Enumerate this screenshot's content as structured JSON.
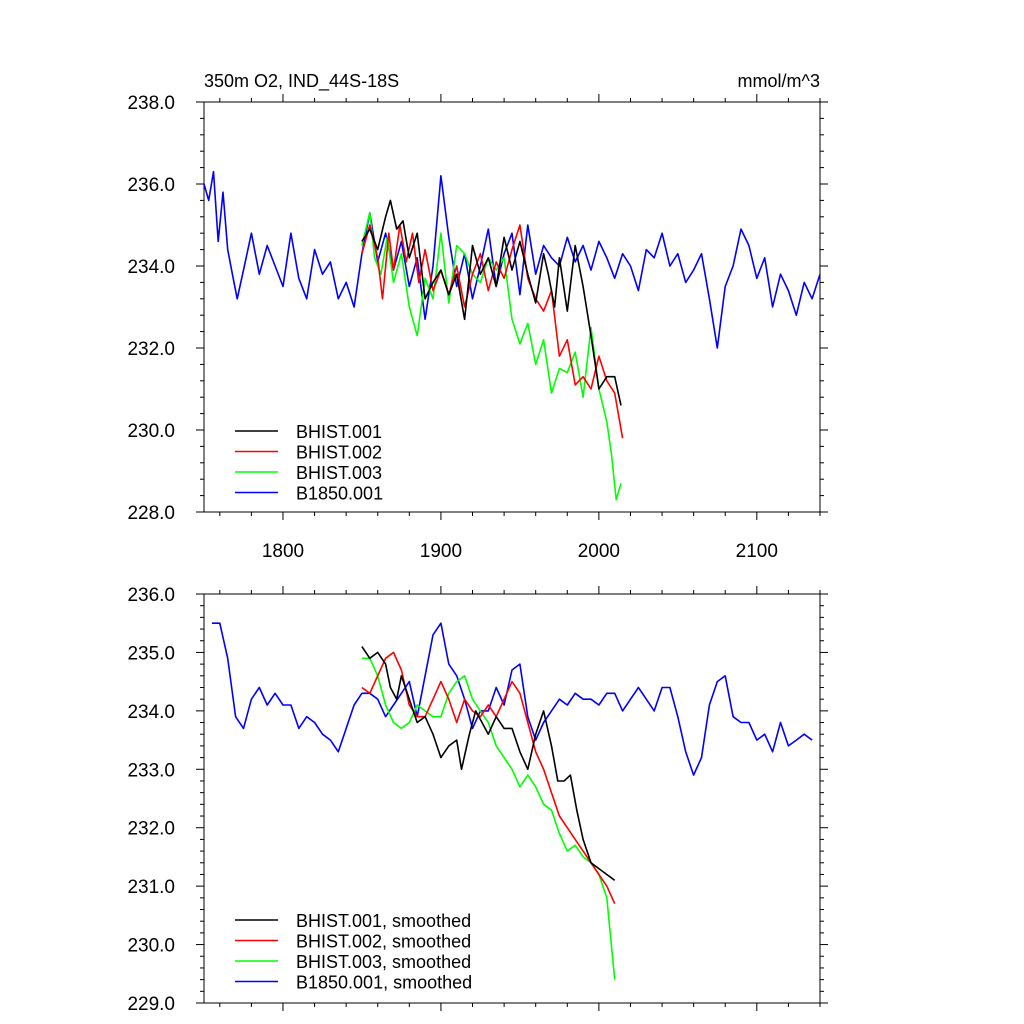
{
  "title_left": "350m O2, IND_44S-18S",
  "title_right": "mmol/m^3",
  "chart_data": [
    {
      "type": "line",
      "xlim": [
        1750,
        2140
      ],
      "ylim": [
        228,
        238
      ],
      "x_ticks": [
        1800,
        1900,
        2000,
        2100
      ],
      "x_tick_labels": [
        "1800",
        "1900",
        "2000",
        "2100"
      ],
      "y_ticks": [
        228,
        230,
        232,
        234,
        236,
        238
      ],
      "y_tick_labels": [
        "228.0",
        "230.0",
        "232.0",
        "234.0",
        "236.0",
        "238.0"
      ],
      "legend_position": "bottom-left",
      "series": [
        {
          "name": "BHIST.001",
          "color": "#000000",
          "x": [
            1850,
            1855,
            1860,
            1865,
            1868,
            1872,
            1876,
            1880,
            1885,
            1890,
            1895,
            1900,
            1905,
            1910,
            1915,
            1920,
            1925,
            1930,
            1935,
            1940,
            1945,
            1950,
            1955,
            1960,
            1965,
            1968,
            1972,
            1975,
            1980,
            1985,
            1990,
            1995,
            2000,
            2005,
            2010,
            2014
          ],
          "y": [
            234.6,
            234.9,
            234.4,
            235.2,
            235.6,
            234.9,
            235.1,
            234.2,
            234.8,
            233.2,
            233.6,
            233.9,
            233.3,
            233.8,
            232.7,
            234.5,
            233.8,
            234.2,
            233.5,
            234.7,
            233.9,
            234.6,
            233.8,
            233.1,
            234.3,
            233.8,
            233.0,
            234.2,
            232.9,
            234.5,
            233.5,
            232.3,
            231.0,
            231.3,
            231.3,
            230.6
          ]
        },
        {
          "name": "BHIST.002",
          "color": "#ff0000",
          "x": [
            1850,
            1855,
            1860,
            1863,
            1867,
            1870,
            1874,
            1878,
            1882,
            1886,
            1890,
            1895,
            1900,
            1905,
            1910,
            1915,
            1920,
            1925,
            1930,
            1935,
            1940,
            1945,
            1950,
            1955,
            1960,
            1965,
            1970,
            1975,
            1980,
            1985,
            1990,
            1995,
            2000,
            2005,
            2010,
            2015
          ],
          "y": [
            234.3,
            235.0,
            234.2,
            233.2,
            234.8,
            233.9,
            235.0,
            234.1,
            234.8,
            233.6,
            234.4,
            233.4,
            233.9,
            233.3,
            234.0,
            233.0,
            233.8,
            234.3,
            233.4,
            234.1,
            233.7,
            234.4,
            235.0,
            233.7,
            233.2,
            232.9,
            233.4,
            231.8,
            232.2,
            231.1,
            231.3,
            231.0,
            231.8,
            231.2,
            230.9,
            229.8
          ]
        },
        {
          "name": "BHIST.003",
          "color": "#00ff00",
          "x": [
            1850,
            1855,
            1858,
            1862,
            1866,
            1870,
            1875,
            1880,
            1885,
            1890,
            1895,
            1900,
            1905,
            1910,
            1915,
            1920,
            1925,
            1930,
            1935,
            1940,
            1945,
            1950,
            1955,
            1960,
            1965,
            1970,
            1975,
            1980,
            1985,
            1990,
            1995,
            2000,
            2005,
            2008,
            2011,
            2014
          ],
          "y": [
            234.5,
            235.3,
            234.2,
            233.8,
            234.7,
            233.6,
            234.3,
            233.0,
            232.3,
            233.7,
            233.2,
            234.8,
            233.1,
            234.5,
            234.3,
            233.8,
            233.6,
            234.2,
            233.9,
            234.2,
            232.7,
            232.1,
            232.6,
            231.6,
            232.2,
            230.9,
            231.5,
            231.4,
            231.9,
            230.8,
            232.5,
            231.0,
            230.2,
            229.4,
            228.3,
            228.7
          ]
        },
        {
          "name": "B1850.001",
          "color": "#0000ff",
          "x": [
            1750,
            1753,
            1756,
            1759,
            1762,
            1765,
            1768,
            1771,
            1775,
            1780,
            1785,
            1790,
            1795,
            1800,
            1805,
            1810,
            1815,
            1820,
            1825,
            1830,
            1835,
            1840,
            1845,
            1850,
            1855,
            1860,
            1865,
            1870,
            1875,
            1880,
            1885,
            1890,
            1895,
            1900,
            1905,
            1910,
            1915,
            1920,
            1925,
            1930,
            1935,
            1940,
            1945,
            1950,
            1955,
            1960,
            1965,
            1970,
            1975,
            1980,
            1985,
            1990,
            1995,
            2000,
            2005,
            2010,
            2015,
            2020,
            2025,
            2030,
            2035,
            2040,
            2045,
            2050,
            2055,
            2060,
            2065,
            2070,
            2075,
            2080,
            2085,
            2090,
            2095,
            2100,
            2105,
            2110,
            2115,
            2120,
            2125,
            2130,
            2135,
            2140
          ],
          "y": [
            236.0,
            235.6,
            236.3,
            234.6,
            235.8,
            234.4,
            233.8,
            233.2,
            233.9,
            234.8,
            233.8,
            234.5,
            234.0,
            233.5,
            234.8,
            233.7,
            233.2,
            234.4,
            233.8,
            234.1,
            233.2,
            233.6,
            233.0,
            234.3,
            235.3,
            234.1,
            234.8,
            233.9,
            234.6,
            233.5,
            234.2,
            232.7,
            234.0,
            236.2,
            234.7,
            233.5,
            234.3,
            233.2,
            234.0,
            234.9,
            233.5,
            234.3,
            234.8,
            233.3,
            235.0,
            233.8,
            234.5,
            234.2,
            234.0,
            234.7,
            234.1,
            234.5,
            233.9,
            234.6,
            234.2,
            233.7,
            234.3,
            234.0,
            233.4,
            234.4,
            234.2,
            234.8,
            234.0,
            234.3,
            233.6,
            233.9,
            234.3,
            233.2,
            232.0,
            233.5,
            234.0,
            234.9,
            234.5,
            233.7,
            234.2,
            233.0,
            233.8,
            233.4,
            232.8,
            233.6,
            233.2,
            233.8
          ]
        }
      ]
    },
    {
      "type": "line",
      "xlim": [
        1750,
        2140
      ],
      "ylim": [
        229,
        236
      ],
      "x_ticks": [
        1800,
        1900,
        2000,
        2100
      ],
      "y_ticks": [
        229,
        230,
        231,
        232,
        233,
        234,
        235,
        236
      ],
      "y_tick_labels": [
        "229.0",
        "230.0",
        "231.0",
        "232.0",
        "233.0",
        "234.0",
        "235.0",
        "236.0"
      ],
      "legend_position": "bottom-left",
      "series": [
        {
          "name": "BHIST.001, smoothed",
          "color": "#000000",
          "x": [
            1850,
            1855,
            1860,
            1865,
            1868,
            1872,
            1875,
            1880,
            1885,
            1890,
            1895,
            1900,
            1905,
            1910,
            1913,
            1918,
            1922,
            1926,
            1930,
            1935,
            1940,
            1945,
            1950,
            1955,
            1960,
            1965,
            1970,
            1974,
            1978,
            1982,
            1986,
            1990,
            1995,
            2000,
            2005,
            2010
          ],
          "y": [
            235.1,
            234.9,
            235.0,
            234.8,
            234.4,
            234.2,
            234.6,
            234.2,
            233.8,
            233.9,
            233.6,
            233.2,
            233.4,
            233.5,
            233.0,
            233.6,
            234.0,
            233.8,
            233.6,
            233.9,
            233.7,
            233.7,
            233.3,
            233.0,
            233.6,
            234.0,
            233.4,
            232.8,
            232.8,
            232.9,
            232.3,
            231.8,
            231.4,
            231.3,
            231.2,
            231.1
          ]
        },
        {
          "name": "BHIST.002, smoothed",
          "color": "#ff0000",
          "x": [
            1850,
            1855,
            1860,
            1865,
            1870,
            1875,
            1880,
            1885,
            1890,
            1895,
            1900,
            1905,
            1910,
            1915,
            1920,
            1925,
            1930,
            1935,
            1940,
            1945,
            1950,
            1955,
            1960,
            1965,
            1970,
            1975,
            1980,
            1985,
            1990,
            1995,
            2000,
            2005,
            2010
          ],
          "y": [
            234.4,
            234.3,
            234.6,
            234.9,
            235.0,
            234.7,
            234.1,
            233.9,
            233.9,
            234.2,
            234.5,
            234.2,
            233.8,
            234.2,
            234.0,
            233.9,
            234.1,
            233.9,
            234.2,
            234.5,
            234.3,
            233.8,
            233.3,
            233.0,
            232.6,
            232.2,
            232.0,
            231.8,
            231.6,
            231.4,
            231.2,
            231.0,
            230.7
          ]
        },
        {
          "name": "BHIST.003, smoothed",
          "color": "#00ff00",
          "x": [
            1850,
            1855,
            1860,
            1865,
            1870,
            1875,
            1880,
            1885,
            1890,
            1895,
            1900,
            1905,
            1910,
            1915,
            1920,
            1925,
            1930,
            1935,
            1940,
            1945,
            1950,
            1955,
            1960,
            1965,
            1970,
            1975,
            1980,
            1985,
            1990,
            1995,
            2000,
            2005,
            2010
          ],
          "y": [
            234.9,
            234.9,
            234.6,
            234.1,
            233.8,
            233.7,
            233.8,
            234.1,
            234.0,
            233.9,
            233.9,
            234.3,
            234.5,
            234.6,
            234.2,
            234.0,
            233.8,
            233.4,
            233.2,
            233.0,
            232.7,
            232.9,
            232.7,
            232.4,
            232.3,
            231.9,
            231.6,
            231.7,
            231.5,
            231.4,
            231.2,
            230.8,
            229.4
          ]
        },
        {
          "name": "B1850.001, smoothed",
          "color": "#0000ff",
          "x": [
            1755,
            1760,
            1765,
            1770,
            1775,
            1780,
            1785,
            1790,
            1795,
            1800,
            1805,
            1810,
            1815,
            1820,
            1825,
            1830,
            1835,
            1840,
            1845,
            1850,
            1855,
            1860,
            1865,
            1870,
            1875,
            1880,
            1885,
            1890,
            1895,
            1900,
            1905,
            1910,
            1915,
            1920,
            1925,
            1930,
            1935,
            1940,
            1945,
            1950,
            1955,
            1960,
            1965,
            1970,
            1975,
            1980,
            1985,
            1990,
            1995,
            2000,
            2005,
            2010,
            2015,
            2020,
            2025,
            2030,
            2035,
            2040,
            2045,
            2050,
            2055,
            2060,
            2065,
            2070,
            2075,
            2080,
            2085,
            2090,
            2095,
            2100,
            2105,
            2110,
            2115,
            2120,
            2125,
            2130,
            2135
          ],
          "y": [
            235.5,
            235.5,
            234.9,
            233.9,
            233.7,
            234.2,
            234.4,
            234.1,
            234.3,
            234.1,
            234.1,
            233.7,
            233.9,
            233.8,
            233.6,
            233.5,
            233.3,
            233.7,
            234.1,
            234.3,
            234.3,
            234.2,
            233.9,
            234.1,
            234.3,
            234.5,
            233.9,
            234.6,
            235.3,
            235.5,
            234.8,
            234.6,
            234.2,
            233.7,
            234.0,
            234.0,
            234.4,
            234.1,
            234.7,
            234.8,
            233.9,
            233.5,
            233.8,
            234.0,
            234.2,
            234.1,
            234.3,
            234.2,
            234.2,
            234.1,
            234.3,
            234.3,
            234.0,
            234.2,
            234.4,
            234.2,
            234.0,
            234.4,
            234.4,
            233.9,
            233.3,
            232.9,
            233.2,
            234.1,
            234.5,
            234.6,
            233.9,
            233.8,
            233.8,
            233.5,
            233.6,
            233.3,
            233.8,
            233.4,
            233.5,
            233.6,
            233.5
          ]
        }
      ]
    }
  ]
}
